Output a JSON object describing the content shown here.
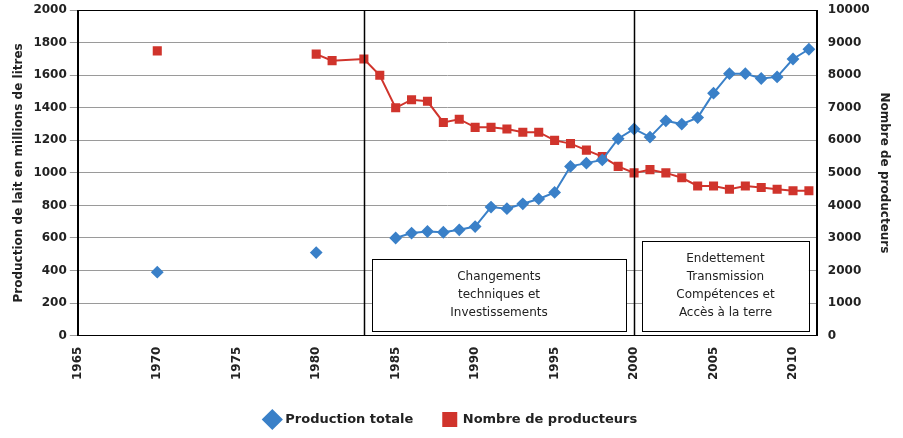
{
  "chart_data": {
    "type": "line",
    "x": [
      1970,
      1975,
      1980,
      1981,
      1983,
      1984,
      1985,
      1986,
      1987,
      1988,
      1989,
      1990,
      1991,
      1992,
      1993,
      1994,
      1995,
      1996,
      1997,
      1998,
      1999,
      2000,
      2001,
      2002,
      2003,
      2004,
      2005,
      2006,
      2007,
      2008,
      2009,
      2010,
      2011
    ],
    "series": [
      {
        "name": "Production totale",
        "color": "#3a80c8",
        "marker": "diamond",
        "values": [
          390,
          null,
          510,
          null,
          null,
          null,
          600,
          630,
          640,
          635,
          650,
          670,
          790,
          780,
          810,
          840,
          880,
          1040,
          1060,
          1080,
          1210,
          1270,
          1220,
          1320,
          1300,
          1340,
          1490,
          1610,
          1610,
          1580,
          1590,
          1700,
          1760
        ]
      },
      {
        "name": "Nombre de producteurs",
        "color": "#d0342c",
        "marker": "square",
        "axis": "y2",
        "values": [
          8750,
          null,
          8650,
          8450,
          8500,
          8000,
          7000,
          7250,
          7200,
          6550,
          6650,
          6400,
          6400,
          6350,
          6250,
          6250,
          6000,
          5900,
          5700,
          5500,
          5200,
          5000,
          5100,
          5000,
          4850,
          4600,
          4600,
          4500,
          4600,
          4550,
          4500,
          4450,
          4450
        ]
      }
    ],
    "x_label": null,
    "y_label": "Production de lait en millions de litres",
    "y2_label": "Nombre de producteurs",
    "xlim": [
      1965,
      2011.5
    ],
    "xticks": [
      1965,
      1970,
      1975,
      1980,
      1985,
      1990,
      1995,
      2000,
      2005,
      2010
    ],
    "ylim": [
      0,
      2000
    ],
    "yticks": [
      0,
      200,
      400,
      600,
      800,
      1000,
      1200,
      1400,
      1600,
      1800,
      2000
    ],
    "y2lim": [
      0,
      10000
    ],
    "y2ticks": [
      0,
      1000,
      2000,
      3000,
      4000,
      5000,
      6000,
      7000,
      8000,
      9000,
      10000
    ],
    "annotations": [
      {
        "x": 1983,
        "text": [
          "Changements",
          "techniques et",
          "Investissements"
        ]
      },
      {
        "x": 2000,
        "text": [
          "Endettement",
          "Transmission",
          "Compétences et",
          "Accès à la terre"
        ]
      }
    ],
    "grid": true,
    "legend": "bottom"
  }
}
